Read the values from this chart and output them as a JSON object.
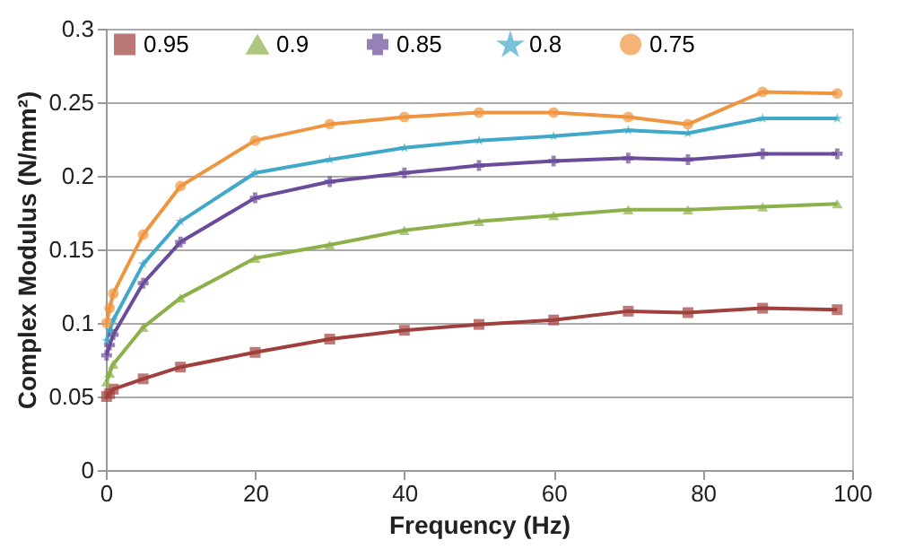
{
  "chart_data": {
    "type": "line",
    "xlabel": "Frequency (Hz)",
    "ylabel": "Complex Modulus (N/mm²)",
    "x": [
      0.1,
      0.5,
      1,
      5,
      10,
      20,
      30,
      40,
      50,
      60,
      70,
      78,
      88,
      98
    ],
    "xlim": [
      0,
      100
    ],
    "xticks": [
      0,
      20,
      40,
      60,
      80,
      100
    ],
    "ylim": [
      0,
      0.3
    ],
    "yticks": [
      0,
      0.05,
      0.1,
      0.15,
      0.2,
      0.25,
      0.3
    ],
    "grid": "y",
    "legend": "top",
    "line_style": "solid",
    "series": [
      {
        "name": "0.95",
        "color": "#a0403d",
        "marker": "square",
        "values": [
          0.05,
          0.052,
          0.055,
          0.062,
          0.07,
          0.08,
          0.089,
          0.095,
          0.099,
          0.102,
          0.108,
          0.107,
          0.11,
          0.109
        ]
      },
      {
        "name": "0.9",
        "color": "#8cb04a",
        "marker": "triangle",
        "values": [
          0.06,
          0.066,
          0.072,
          0.097,
          0.117,
          0.144,
          0.153,
          0.163,
          0.169,
          0.173,
          0.177,
          0.177,
          0.179,
          0.181
        ]
      },
      {
        "name": "0.85",
        "color": "#6b4c9a",
        "marker": "cross",
        "values": [
          0.078,
          0.085,
          0.092,
          0.127,
          0.155,
          0.185,
          0.196,
          0.202,
          0.207,
          0.21,
          0.212,
          0.211,
          0.215,
          0.215
        ]
      },
      {
        "name": "0.8",
        "color": "#40a8c8",
        "marker": "star",
        "values": [
          0.088,
          0.095,
          0.102,
          0.14,
          0.169,
          0.202,
          0.211,
          0.219,
          0.224,
          0.227,
          0.231,
          0.229,
          0.239,
          0.239
        ]
      },
      {
        "name": "0.75",
        "color": "#f0953f",
        "marker": "circle",
        "values": [
          0.1,
          0.11,
          0.12,
          0.16,
          0.193,
          0.224,
          0.235,
          0.24,
          0.243,
          0.243,
          0.24,
          0.235,
          0.257,
          0.256
        ]
      }
    ]
  }
}
